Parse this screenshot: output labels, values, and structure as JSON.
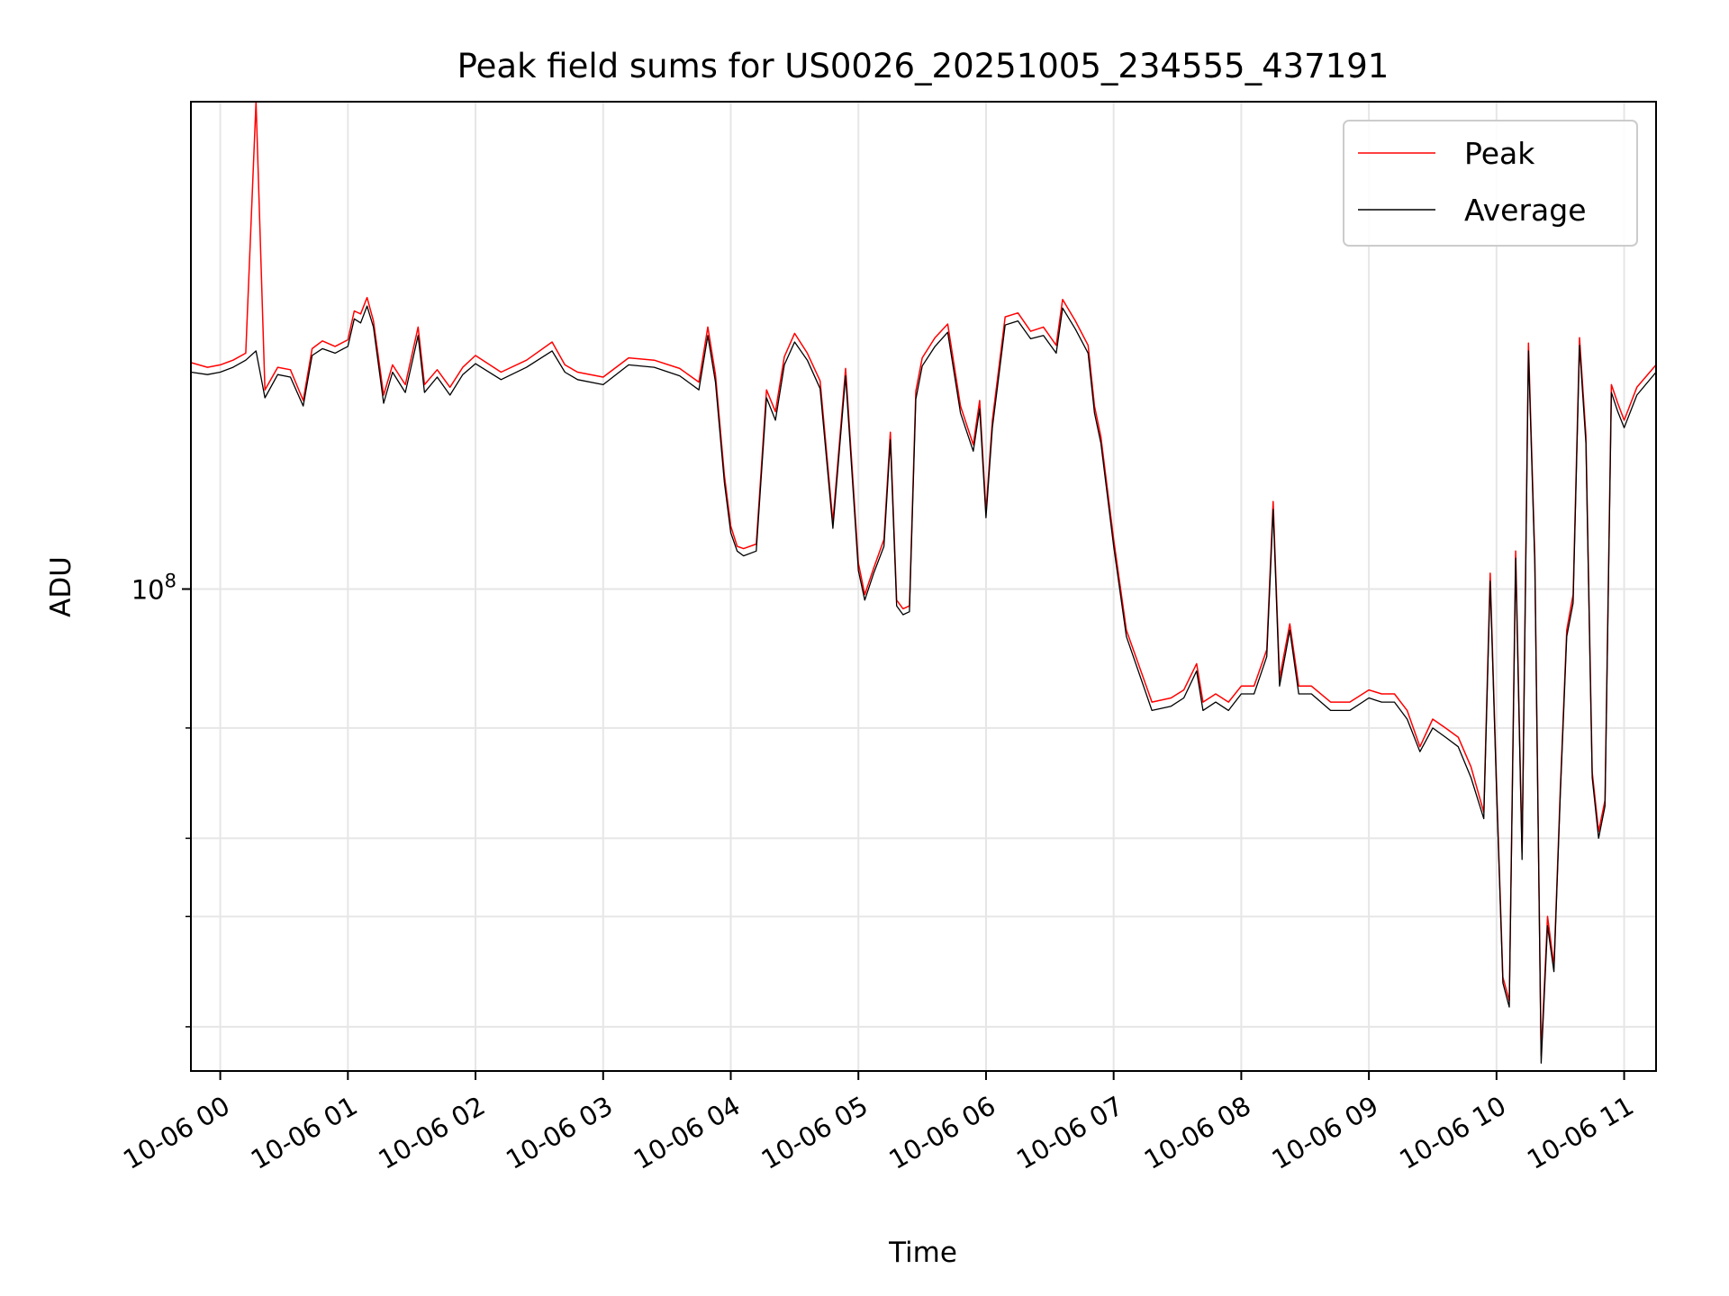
{
  "chart_data": {
    "type": "line",
    "title": "Peak field sums for US0026_20251005_234555_437191",
    "xlabel": "Time",
    "ylabel": "ADU",
    "yscale": "log",
    "ylim": [
      17000000,
      600000000
    ],
    "xlim": [
      -0.23,
      11.25
    ],
    "x_unit": "hours after 10-06 00:00",
    "grid": true,
    "legend_position": "top-right",
    "x_ticks": [
      {
        "value": 0,
        "label": "10-06 00"
      },
      {
        "value": 1,
        "label": "10-06 01"
      },
      {
        "value": 2,
        "label": "10-06 02"
      },
      {
        "value": 3,
        "label": "10-06 03"
      },
      {
        "value": 4,
        "label": "10-06 04"
      },
      {
        "value": 5,
        "label": "10-06 05"
      },
      {
        "value": 6,
        "label": "10-06 06"
      },
      {
        "value": 7,
        "label": "10-06 07"
      },
      {
        "value": 8,
        "label": "10-06 08"
      },
      {
        "value": 9,
        "label": "10-06 09"
      },
      {
        "value": 10,
        "label": "10-06 10"
      },
      {
        "value": 11,
        "label": "10-06 11"
      }
    ],
    "y_major_ticks": [
      {
        "value": 100000000,
        "base": "10",
        "exponent": "8"
      }
    ],
    "y_minor_ticks": [
      20000000,
      30000000,
      40000000,
      60000000
    ],
    "x": [
      -0.23,
      -0.1,
      0.0,
      0.1,
      0.2,
      0.28,
      0.35,
      0.45,
      0.55,
      0.65,
      0.72,
      0.8,
      0.9,
      1.0,
      1.05,
      1.1,
      1.15,
      1.2,
      1.28,
      1.35,
      1.45,
      1.55,
      1.6,
      1.7,
      1.8,
      1.9,
      2.0,
      2.2,
      2.4,
      2.6,
      2.7,
      2.8,
      3.0,
      3.2,
      3.4,
      3.6,
      3.75,
      3.82,
      3.88,
      3.95,
      4.0,
      4.05,
      4.1,
      4.2,
      4.28,
      4.35,
      4.42,
      4.5,
      4.6,
      4.7,
      4.8,
      4.9,
      5.0,
      5.05,
      5.12,
      5.2,
      5.25,
      5.3,
      5.35,
      5.4,
      5.45,
      5.5,
      5.6,
      5.7,
      5.8,
      5.9,
      5.95,
      6.0,
      6.05,
      6.15,
      6.25,
      6.35,
      6.45,
      6.55,
      6.6,
      6.7,
      6.8,
      6.85,
      6.9,
      7.0,
      7.1,
      7.3,
      7.45,
      7.55,
      7.65,
      7.7,
      7.8,
      7.9,
      8.0,
      8.1,
      8.2,
      8.25,
      8.3,
      8.38,
      8.45,
      8.55,
      8.7,
      8.85,
      9.0,
      9.1,
      9.2,
      9.3,
      9.4,
      9.5,
      9.6,
      9.7,
      9.8,
      9.9,
      9.95,
      10.0,
      10.05,
      10.1,
      10.15,
      10.2,
      10.25,
      10.3,
      10.35,
      10.4,
      10.45,
      10.5,
      10.55,
      10.6,
      10.65,
      10.7,
      10.75,
      10.8,
      10.85,
      10.9,
      10.95,
      11.0,
      11.1,
      11.25
    ],
    "series": [
      {
        "name": "Peak",
        "color": "#ff0000",
        "values": [
          230000000,
          226000000,
          228000000,
          232000000,
          238000000,
          600000000,
          208000000,
          226000000,
          224000000,
          200000000,
          242000000,
          249000000,
          244000000,
          250000000,
          278000000,
          275000000,
          292000000,
          268000000,
          204000000,
          228000000,
          212000000,
          262000000,
          212000000,
          224000000,
          210000000,
          226000000,
          236000000,
          222000000,
          232000000,
          248000000,
          228000000,
          222000000,
          218000000,
          234000000,
          232000000,
          225000000,
          214000000,
          262000000,
          220000000,
          152000000,
          126000000,
          117000000,
          116000000,
          118000000,
          208000000,
          192000000,
          235000000,
          256000000,
          238000000,
          215000000,
          128000000,
          225000000,
          110000000,
          98000000,
          108000000,
          120000000,
          178000000,
          96000000,
          93000000,
          94000000,
          207000000,
          234000000,
          252000000,
          265000000,
          196000000,
          170000000,
          200000000,
          133000000,
          186000000,
          272000000,
          276000000,
          258000000,
          262000000,
          245000000,
          290000000,
          268000000,
          245000000,
          196000000,
          175000000,
          120000000,
          86000000,
          66000000,
          67000000,
          69000000,
          76000000,
          66000000,
          68000000,
          66000000,
          70000000,
          70000000,
          80000000,
          138000000,
          72000000,
          88000000,
          70000000,
          70000000,
          66000000,
          66000000,
          69000000,
          68000000,
          68000000,
          64000000,
          56000000,
          62000000,
          60000000,
          58000000,
          52000000,
          44000000,
          106000000,
          49000000,
          24000000,
          22000000,
          115000000,
          38000000,
          247000000,
          112000000,
          18000000,
          30000000,
          25000000,
          48000000,
          86000000,
          98000000,
          252000000,
          176000000,
          51000000,
          41000000,
          46000000,
          212000000,
          198000000,
          186000000,
          210000000,
          228000000
        ]
      },
      {
        "name": "Average",
        "color": "#000000",
        "values": [
          222000000,
          220000000,
          222000000,
          226000000,
          232000000,
          240000000,
          202000000,
          220000000,
          218000000,
          196000000,
          236000000,
          242000000,
          238000000,
          244000000,
          270000000,
          266000000,
          283000000,
          262000000,
          198000000,
          222000000,
          206000000,
          254000000,
          206000000,
          218000000,
          204000000,
          220000000,
          229000000,
          216000000,
          226000000,
          240000000,
          222000000,
          216000000,
          212000000,
          228000000,
          226000000,
          219000000,
          208000000,
          254000000,
          214000000,
          148000000,
          123000000,
          115000000,
          113000000,
          115000000,
          202000000,
          186000000,
          228000000,
          248000000,
          232000000,
          209000000,
          125000000,
          219000000,
          107000000,
          96000000,
          106000000,
          117000000,
          173000000,
          94000000,
          91000000,
          92000000,
          201000000,
          227000000,
          244000000,
          257000000,
          191000000,
          166000000,
          194000000,
          130000000,
          181000000,
          264000000,
          268000000,
          251000000,
          254000000,
          238000000,
          281000000,
          260000000,
          238000000,
          191000000,
          171000000,
          117000000,
          84000000,
          64000000,
          65000000,
          67000000,
          74000000,
          64000000,
          66000000,
          64000000,
          68000000,
          68000000,
          78000000,
          134000000,
          70000000,
          86000000,
          68000000,
          68000000,
          64000000,
          64000000,
          67000000,
          66000000,
          66000000,
          62000000,
          55000000,
          60000000,
          58000000,
          56000000,
          50000000,
          43000000,
          103000000,
          48000000,
          23500000,
          21500000,
          112000000,
          37000000,
          240000000,
          109000000,
          17500000,
          29000000,
          24500000,
          47000000,
          84000000,
          95000000,
          245000000,
          171000000,
          50000000,
          40000000,
          45000000,
          206000000,
          192000000,
          181000000,
          204000000,
          222000000
        ]
      }
    ],
    "legend": [
      "Peak",
      "Average"
    ]
  }
}
